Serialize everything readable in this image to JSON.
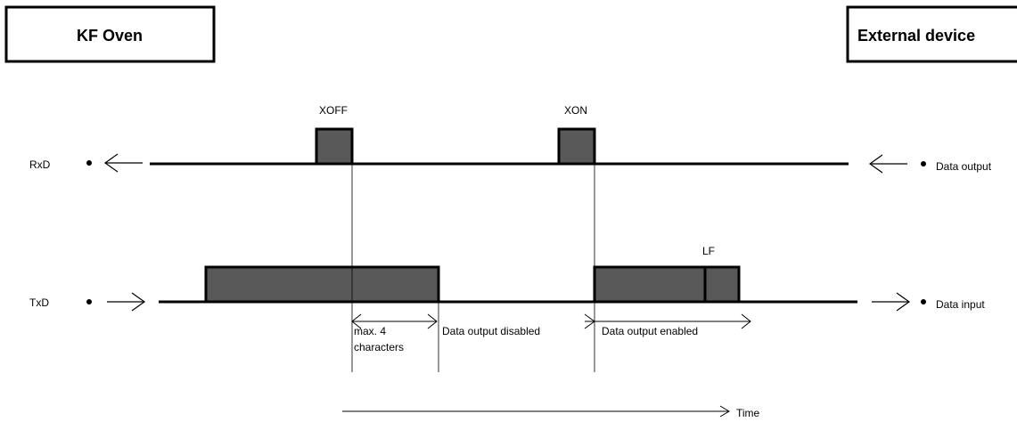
{
  "left_box": {
    "title": "KF Oven"
  },
  "right_box": {
    "title": "External device"
  },
  "signals": {
    "rxd": {
      "left_label": "RxD",
      "right_label": "Data output"
    },
    "txd": {
      "left_label": "TxD",
      "right_label": "Data input"
    }
  },
  "markers": {
    "xoff": "XOFF",
    "xon": "XON",
    "lf": "LF"
  },
  "intervals": {
    "max_chars_line1": "max. 4",
    "max_chars_line2": "characters",
    "disabled": "Data output disabled",
    "enabled": "Data output enabled"
  },
  "time_axis": {
    "label": "Time"
  },
  "colors": {
    "block_fill": "#595959",
    "line": "#000000",
    "background": "#ffffff"
  }
}
